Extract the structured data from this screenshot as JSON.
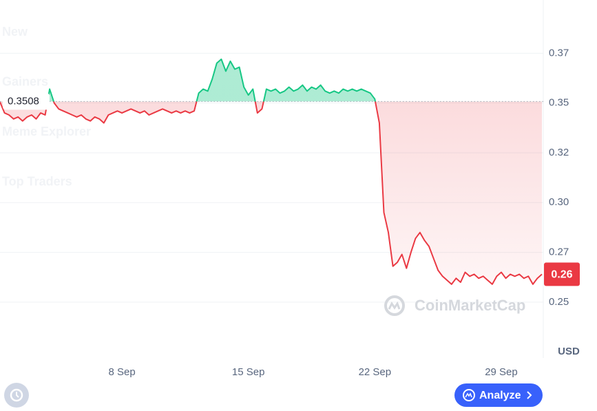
{
  "chart_data": {
    "type": "line",
    "values": [
      0.3505,
      0.345,
      0.344,
      0.342,
      0.343,
      0.341,
      0.343,
      0.344,
      0.342,
      0.345,
      0.344,
      0.357,
      0.35,
      0.347,
      0.346,
      0.345,
      0.344,
      0.343,
      0.344,
      0.342,
      0.341,
      0.343,
      0.342,
      0.34,
      0.344,
      0.345,
      0.346,
      0.345,
      0.346,
      0.347,
      0.346,
      0.345,
      0.346,
      0.344,
      0.345,
      0.346,
      0.347,
      0.346,
      0.345,
      0.346,
      0.345,
      0.346,
      0.345,
      0.346,
      0.355,
      0.357,
      0.356,
      0.362,
      0.37,
      0.372,
      0.366,
      0.371,
      0.367,
      0.368,
      0.358,
      0.354,
      0.357,
      0.345,
      0.347,
      0.357,
      0.356,
      0.357,
      0.355,
      0.356,
      0.358,
      0.356,
      0.357,
      0.359,
      0.356,
      0.358,
      0.357,
      0.359,
      0.356,
      0.355,
      0.356,
      0.355,
      0.357,
      0.356,
      0.357,
      0.356,
      0.357,
      0.356,
      0.355,
      0.352,
      0.34,
      0.295,
      0.285,
      0.268,
      0.27,
      0.274,
      0.267,
      0.275,
      0.282,
      0.285,
      0.281,
      0.278,
      0.272,
      0.266,
      0.263,
      0.261,
      0.259,
      0.262,
      0.26,
      0.265,
      0.263,
      0.264,
      0.262,
      0.263,
      0.261,
      0.259,
      0.263,
      0.265,
      0.262,
      0.264,
      0.263,
      0.264,
      0.262,
      0.263,
      0.259,
      0.262,
      0.264
    ],
    "baseline": 0.3508,
    "color_up": "#16c784",
    "color_down": "#ea3943",
    "xlim": [
      0,
      120
    ],
    "xticks": [
      {
        "value": 27,
        "label": "8 Sep"
      },
      {
        "value": 55,
        "label": "15 Sep"
      },
      {
        "value": 83,
        "label": "22 Sep"
      },
      {
        "value": 111,
        "label": "29 Sep"
      }
    ],
    "ylim": [
      0.223,
      0.4
    ],
    "yticks": [
      {
        "value": 0.25,
        "label": "0.25"
      },
      {
        "value": 0.275,
        "label": "0.27"
      },
      {
        "value": 0.3,
        "label": "0.30"
      },
      {
        "value": 0.325,
        "label": "0.32"
      },
      {
        "value": 0.35,
        "label": "0.35"
      },
      {
        "value": 0.375,
        "label": "0.37"
      }
    ],
    "grid": true,
    "unit_label": "USD",
    "last_price_label": "0.26",
    "watermark": "CoinMarketCap"
  },
  "ghost_menu": [
    "New",
    "Gainers",
    "Meme Explorer",
    "Top Traders"
  ],
  "analyze_button": "Analyze"
}
